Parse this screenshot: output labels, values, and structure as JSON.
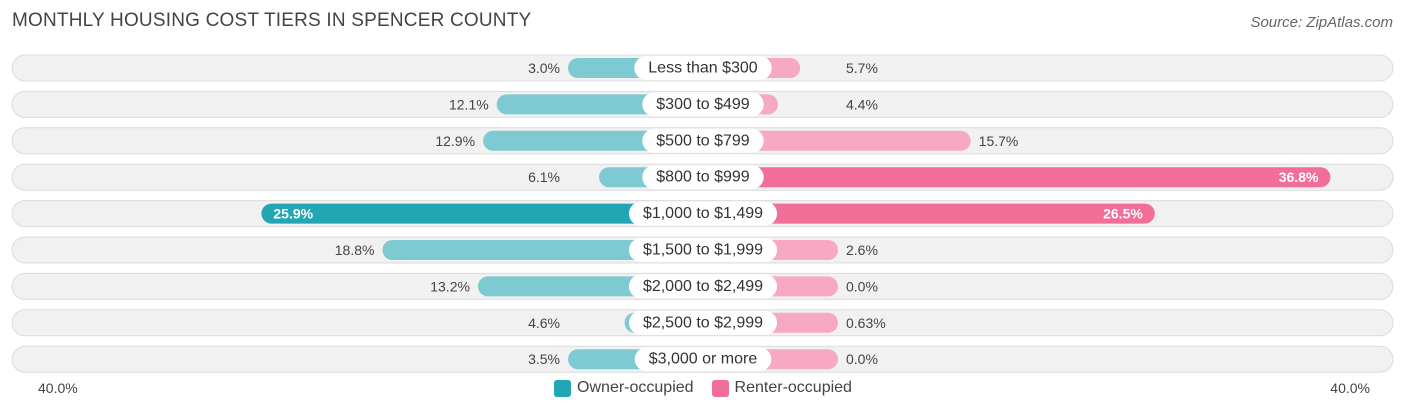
{
  "title": "MONTHLY HOUSING COST TIERS IN SPENCER COUNTY",
  "source": "Source: ZipAtlas.com",
  "colors": {
    "owner_light": "#7ecad3",
    "owner_dark": "#22a6b3",
    "renter_light": "#f7a8c2",
    "renter_dark": "#f06e97"
  },
  "chart_data": {
    "type": "bar",
    "orientation": "horizontal-diverging",
    "categories": [
      "Less than $300",
      "$300 to $499",
      "$500 to $799",
      "$800 to $999",
      "$1,000 to $1,499",
      "$1,500 to $1,999",
      "$2,000 to $2,499",
      "$2,500 to $2,999",
      "$3,000 or more"
    ],
    "series": [
      {
        "name": "Owner-occupied",
        "values": [
          3.0,
          12.1,
          12.9,
          6.1,
          25.9,
          18.8,
          13.2,
          4.6,
          3.5
        ],
        "labels": [
          "3.0%",
          "12.1%",
          "12.9%",
          "6.1%",
          "25.9%",
          "18.8%",
          "13.2%",
          "4.6%",
          "3.5%"
        ]
      },
      {
        "name": "Renter-occupied",
        "values": [
          5.7,
          4.4,
          15.7,
          36.8,
          26.5,
          2.6,
          0.0,
          0.63,
          0.0
        ],
        "labels": [
          "5.7%",
          "4.4%",
          "15.7%",
          "36.8%",
          "26.5%",
          "2.6%",
          "0.0%",
          "0.63%",
          "0.0%"
        ]
      }
    ],
    "xlim": [
      -40,
      40
    ],
    "axis_left_label": "40.0%",
    "axis_right_label": "40.0%",
    "legend_position": "bottom-center"
  }
}
